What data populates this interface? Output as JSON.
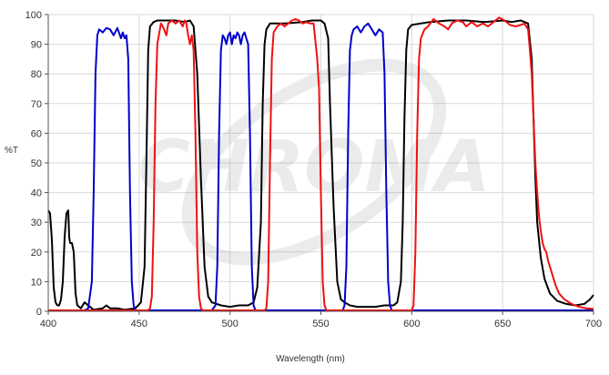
{
  "chart_data": {
    "type": "line",
    "xlabel": "Wavelength (nm)",
    "ylabel": "%T",
    "xlim": [
      400,
      700
    ],
    "ylim": [
      0,
      100
    ],
    "x_ticks": [
      400,
      450,
      500,
      550,
      600,
      650,
      700
    ],
    "y_ticks": [
      0,
      10,
      20,
      30,
      40,
      50,
      60,
      70,
      80,
      90,
      100
    ],
    "grid": true,
    "legend": "none",
    "watermark": "CHROMA",
    "series": [
      {
        "color": "#000000",
        "points": [
          [
            400,
            34
          ],
          [
            401,
            33
          ],
          [
            402,
            24
          ],
          [
            403,
            8
          ],
          [
            404,
            3
          ],
          [
            405,
            2
          ],
          [
            406,
            2
          ],
          [
            407,
            4
          ],
          [
            408,
            10
          ],
          [
            409,
            25
          ],
          [
            410,
            33
          ],
          [
            411,
            34
          ],
          [
            411.5,
            25
          ],
          [
            412,
            23
          ],
          [
            413,
            23
          ],
          [
            414,
            20
          ],
          [
            415,
            6
          ],
          [
            416,
            2
          ],
          [
            418,
            1
          ],
          [
            420,
            3
          ],
          [
            422,
            2
          ],
          [
            425,
            0.5
          ],
          [
            430,
            1
          ],
          [
            432,
            2
          ],
          [
            434,
            1
          ],
          [
            438,
            1
          ],
          [
            442,
            0.5
          ],
          [
            448,
            1
          ],
          [
            451,
            3
          ],
          [
            453,
            15
          ],
          [
            454,
            50
          ],
          [
            455,
            88
          ],
          [
            456,
            96
          ],
          [
            458,
            97.5
          ],
          [
            460,
            98
          ],
          [
            465,
            98
          ],
          [
            470,
            98
          ],
          [
            475,
            97.5
          ],
          [
            478,
            98
          ],
          [
            480,
            96
          ],
          [
            482,
            80
          ],
          [
            484,
            45
          ],
          [
            486,
            15
          ],
          [
            488,
            5
          ],
          [
            490,
            3
          ],
          [
            495,
            2
          ],
          [
            500,
            1.5
          ],
          [
            505,
            2
          ],
          [
            510,
            2
          ],
          [
            513,
            3
          ],
          [
            515,
            8
          ],
          [
            517,
            30
          ],
          [
            518,
            70
          ],
          [
            519,
            90
          ],
          [
            520,
            95
          ],
          [
            522,
            97
          ],
          [
            530,
            97
          ],
          [
            540,
            97.5
          ],
          [
            545,
            98
          ],
          [
            550,
            98
          ],
          [
            552,
            97
          ],
          [
            554,
            92
          ],
          [
            555,
            70
          ],
          [
            557,
            35
          ],
          [
            559,
            10
          ],
          [
            561,
            4
          ],
          [
            563,
            3
          ],
          [
            566,
            2
          ],
          [
            570,
            1.5
          ],
          [
            575,
            1.5
          ],
          [
            580,
            1.5
          ],
          [
            585,
            2
          ],
          [
            590,
            2
          ],
          [
            592,
            3
          ],
          [
            594,
            10
          ],
          [
            595,
            30
          ],
          [
            596,
            65
          ],
          [
            597,
            88
          ],
          [
            598,
            95
          ],
          [
            600,
            96.5
          ],
          [
            610,
            97.5
          ],
          [
            620,
            98
          ],
          [
            630,
            98
          ],
          [
            640,
            97.5
          ],
          [
            650,
            98
          ],
          [
            655,
            97.5
          ],
          [
            660,
            98
          ],
          [
            662,
            97.5
          ],
          [
            664,
            97
          ],
          [
            666,
            85
          ],
          [
            667,
            65
          ],
          [
            668,
            45
          ],
          [
            669,
            30
          ],
          [
            671,
            18
          ],
          [
            673,
            11
          ],
          [
            676,
            6
          ],
          [
            680,
            3.5
          ],
          [
            685,
            2.5
          ],
          [
            690,
            2
          ],
          [
            695,
            2.5
          ],
          [
            698,
            4
          ],
          [
            700,
            5.5
          ]
        ]
      },
      {
        "color": "#0000cc",
        "points": [
          [
            400,
            0.3
          ],
          [
            420,
            0.3
          ],
          [
            422,
            1
          ],
          [
            424,
            10
          ],
          [
            425,
            40
          ],
          [
            426,
            80
          ],
          [
            427,
            93
          ],
          [
            428,
            95
          ],
          [
            430,
            94
          ],
          [
            432,
            95.5
          ],
          [
            434,
            95
          ],
          [
            436,
            93
          ],
          [
            438,
            95.5
          ],
          [
            440,
            92
          ],
          [
            441,
            94
          ],
          [
            442,
            92
          ],
          [
            443,
            93
          ],
          [
            444,
            85
          ],
          [
            445,
            40
          ],
          [
            446,
            10
          ],
          [
            447,
            2
          ],
          [
            448,
            0.3
          ],
          [
            490,
            0.3
          ],
          [
            492,
            2
          ],
          [
            493,
            15
          ],
          [
            494,
            60
          ],
          [
            495,
            88
          ],
          [
            496,
            93
          ],
          [
            497,
            92
          ],
          [
            498,
            90
          ],
          [
            499,
            93
          ],
          [
            500,
            94
          ],
          [
            501,
            90
          ],
          [
            502,
            93
          ],
          [
            503,
            92
          ],
          [
            504,
            94
          ],
          [
            505,
            93
          ],
          [
            506,
            90
          ],
          [
            507,
            93
          ],
          [
            508,
            94
          ],
          [
            509,
            92
          ],
          [
            510,
            90
          ],
          [
            511,
            60
          ],
          [
            512,
            15
          ],
          [
            513,
            2
          ],
          [
            514,
            0.3
          ],
          [
            562,
            0.3
          ],
          [
            563,
            2
          ],
          [
            564,
            15
          ],
          [
            565,
            60
          ],
          [
            566,
            88
          ],
          [
            567,
            93
          ],
          [
            568,
            95
          ],
          [
            570,
            96
          ],
          [
            572,
            94
          ],
          [
            574,
            96
          ],
          [
            576,
            97
          ],
          [
            578,
            95
          ],
          [
            580,
            93
          ],
          [
            582,
            95
          ],
          [
            584,
            94
          ],
          [
            585,
            80
          ],
          [
            586,
            40
          ],
          [
            587,
            10
          ],
          [
            588,
            2
          ],
          [
            589,
            0.3
          ],
          [
            700,
            0.3
          ]
        ]
      },
      {
        "color": "#ee1111",
        "points": [
          [
            400,
            0.3
          ],
          [
            455,
            0.3
          ],
          [
            456,
            1
          ],
          [
            457,
            5
          ],
          [
            458,
            30
          ],
          [
            459,
            70
          ],
          [
            460,
            90
          ],
          [
            462,
            97
          ],
          [
            463,
            96
          ],
          [
            465,
            93
          ],
          [
            466,
            97
          ],
          [
            468,
            98
          ],
          [
            470,
            97
          ],
          [
            472,
            98
          ],
          [
            474,
            96
          ],
          [
            475,
            98
          ],
          [
            476,
            97
          ],
          [
            477,
            93
          ],
          [
            478,
            90
          ],
          [
            479,
            93
          ],
          [
            480,
            88
          ],
          [
            481,
            60
          ],
          [
            482,
            20
          ],
          [
            483,
            5
          ],
          [
            484,
            1
          ],
          [
            485,
            0.3
          ],
          [
            519,
            0.3
          ],
          [
            520,
            1
          ],
          [
            521,
            10
          ],
          [
            522,
            50
          ],
          [
            523,
            85
          ],
          [
            524,
            94
          ],
          [
            526,
            96
          ],
          [
            528,
            97
          ],
          [
            530,
            96
          ],
          [
            532,
            97
          ],
          [
            534,
            98
          ],
          [
            536,
            98.5
          ],
          [
            538,
            98
          ],
          [
            540,
            97
          ],
          [
            542,
            97.5
          ],
          [
            544,
            97
          ],
          [
            546,
            97
          ],
          [
            548,
            85
          ],
          [
            549,
            75
          ],
          [
            550,
            40
          ],
          [
            551,
            10
          ],
          [
            552,
            2
          ],
          [
            553,
            0.3
          ],
          [
            600,
            0.3
          ],
          [
            601,
            2
          ],
          [
            602,
            20
          ],
          [
            603,
            60
          ],
          [
            604,
            85
          ],
          [
            605,
            92
          ],
          [
            607,
            95
          ],
          [
            609,
            96
          ],
          [
            612,
            98.5
          ],
          [
            615,
            97
          ],
          [
            618,
            96
          ],
          [
            620,
            95
          ],
          [
            622,
            97
          ],
          [
            625,
            98
          ],
          [
            628,
            97.5
          ],
          [
            630,
            96
          ],
          [
            633,
            97.5
          ],
          [
            636,
            96
          ],
          [
            639,
            97
          ],
          [
            642,
            96
          ],
          [
            645,
            97.5
          ],
          [
            648,
            99
          ],
          [
            651,
            98
          ],
          [
            654,
            96.5
          ],
          [
            657,
            96
          ],
          [
            660,
            96.5
          ],
          [
            662,
            97
          ],
          [
            664,
            95
          ],
          [
            665,
            88
          ],
          [
            666,
            80
          ],
          [
            667,
            65
          ],
          [
            668,
            50
          ],
          [
            669,
            40
          ],
          [
            670,
            32
          ],
          [
            671,
            27
          ],
          [
            672,
            23
          ],
          [
            673,
            21
          ],
          [
            674,
            20
          ],
          [
            675,
            17
          ],
          [
            677,
            13
          ],
          [
            679,
            9
          ],
          [
            681,
            6
          ],
          [
            684,
            4
          ],
          [
            688,
            2.5
          ],
          [
            692,
            1.5
          ],
          [
            696,
            1
          ],
          [
            700,
            0.8
          ]
        ]
      }
    ]
  }
}
